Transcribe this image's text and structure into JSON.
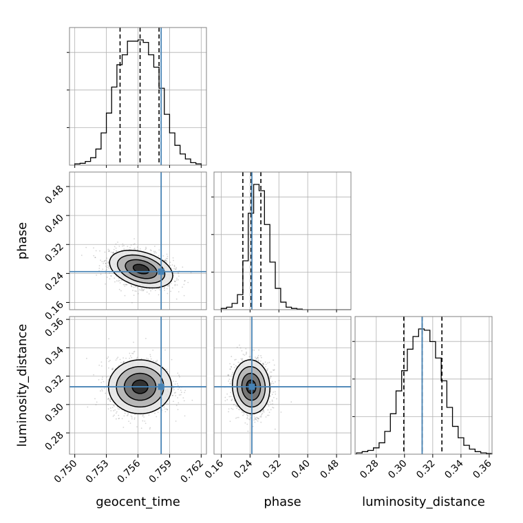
{
  "chart_data": {
    "type": "corner",
    "parameters": [
      "geocent_time",
      "phase",
      "luminosity_distance"
    ],
    "axes": {
      "geocent_time": {
        "label": "geocent_time",
        "range": [
          0.7495,
          0.7625
        ],
        "ticks": [
          0.75,
          0.753,
          0.756,
          0.759,
          0.762
        ],
        "tick_labels": [
          "0.750",
          "0.753",
          "0.756",
          "0.759",
          "0.762"
        ]
      },
      "phase": {
        "label": "phase",
        "range": [
          0.14,
          0.52
        ],
        "ticks": [
          0.16,
          0.24,
          0.32,
          0.4,
          0.48
        ],
        "tick_labels": [
          "0.16",
          "0.24",
          "0.32",
          "0.40",
          "0.48"
        ]
      },
      "luminosity_distance": {
        "label": "luminosity_distance",
        "range": [
          0.265,
          0.362
        ],
        "ticks": [
          0.28,
          0.3,
          0.32,
          0.34,
          0.36
        ],
        "tick_labels": [
          "0.28",
          "0.30",
          "0.32",
          "0.34",
          "0.36"
        ]
      }
    },
    "truths": {
      "geocent_time": 0.7582,
      "phase": 0.245,
      "luminosity_distance": 0.3125
    },
    "quantiles": {
      "geocent_time": [
        0.7543,
        0.7562,
        0.758
      ],
      "phase": [
        0.22,
        0.243,
        0.27
      ],
      "luminosity_distance": [
        0.2995,
        0.3125,
        0.3265
      ]
    },
    "histograms": {
      "geocent_time": {
        "edges": [
          0.75,
          0.7505,
          0.751,
          0.7515,
          0.752,
          0.7525,
          0.753,
          0.7535,
          0.754,
          0.7545,
          0.755,
          0.7555,
          0.756,
          0.7565,
          0.757,
          0.7575,
          0.758,
          0.7585,
          0.759,
          0.7595,
          0.76,
          0.7605,
          0.761,
          0.7615,
          0.762
        ],
        "counts": [
          0.01,
          0.015,
          0.03,
          0.06,
          0.13,
          0.26,
          0.42,
          0.63,
          0.81,
          0.89,
          1.0,
          1.0,
          1.01,
          0.99,
          0.89,
          0.79,
          0.62,
          0.41,
          0.26,
          0.16,
          0.09,
          0.05,
          0.02,
          0.01
        ]
      },
      "phase": {
        "edges": [
          0.16,
          0.175,
          0.19,
          0.205,
          0.22,
          0.235,
          0.25,
          0.265,
          0.28,
          0.295,
          0.31,
          0.325,
          0.34,
          0.355,
          0.37,
          0.385,
          0.4,
          0.415,
          0.43,
          0.445,
          0.46,
          0.475,
          0.49,
          0.505,
          0.52
        ],
        "counts": [
          0.01,
          0.02,
          0.05,
          0.12,
          0.39,
          0.77,
          1.0,
          0.95,
          0.68,
          0.38,
          0.17,
          0.06,
          0.02,
          0.01,
          0.005,
          0,
          0,
          0,
          0,
          0,
          0,
          0,
          0,
          0
        ]
      },
      "luminosity_distance": {
        "edges": [
          0.266,
          0.27,
          0.274,
          0.278,
          0.282,
          0.286,
          0.29,
          0.294,
          0.298,
          0.302,
          0.306,
          0.31,
          0.314,
          0.318,
          0.322,
          0.326,
          0.33,
          0.334,
          0.338,
          0.342,
          0.346,
          0.35,
          0.354,
          0.358,
          0.362
        ],
        "counts": [
          0.01,
          0.02,
          0.03,
          0.05,
          0.09,
          0.18,
          0.32,
          0.5,
          0.66,
          0.83,
          0.93,
          0.99,
          0.98,
          0.89,
          0.76,
          0.58,
          0.37,
          0.22,
          0.13,
          0.07,
          0.04,
          0.02,
          0.01,
          0.005
        ]
      }
    },
    "joint": [
      {
        "x": "geocent_time",
        "y": "phase",
        "mean": [
          0.7563,
          0.252
        ],
        "sd": [
          0.0015,
          0.026
        ],
        "rho": -0.35
      },
      {
        "x": "geocent_time",
        "y": "luminosity_distance",
        "mean": [
          0.7562,
          0.3125
        ],
        "sd": [
          0.0015,
          0.0095
        ],
        "rho": 0.0
      },
      {
        "x": "phase",
        "y": "luminosity_distance",
        "mean": [
          0.243,
          0.3125
        ],
        "sd": [
          0.026,
          0.0095
        ],
        "rho": -0.05
      }
    ],
    "contour_levels_sigma": [
      0.5,
      1.0,
      1.5,
      2.0
    ],
    "grid": true,
    "colors": {
      "truth": "#4682b4",
      "line": "#000000",
      "grid": "#b0b0b0",
      "points": "#808080",
      "frame": "#808080"
    }
  }
}
